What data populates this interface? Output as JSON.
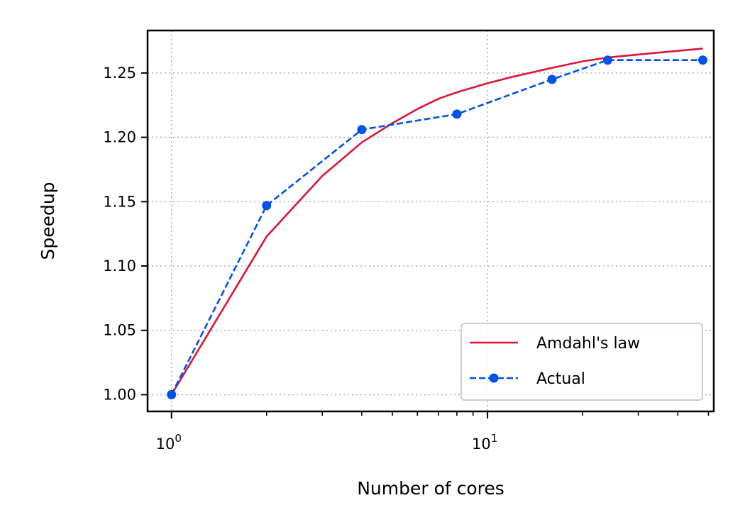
{
  "chart_data": {
    "type": "line",
    "title": "",
    "xlabel": "Number of cores",
    "ylabel": "Speedup",
    "xscale": "log",
    "xlim": [
      0.84,
      52
    ],
    "ylim": [
      0.987,
      1.283
    ],
    "x_major_ticks": [
      {
        "value": 1,
        "base": "10",
        "exp": "0"
      },
      {
        "value": 10,
        "base": "10",
        "exp": "1"
      }
    ],
    "x_minor_ticks": [
      2,
      3,
      4,
      5,
      6,
      7,
      8,
      9,
      20,
      30,
      40,
      50
    ],
    "y_ticks": [
      {
        "value": 1.0,
        "label": "1.00"
      },
      {
        "value": 1.05,
        "label": "1.05"
      },
      {
        "value": 1.1,
        "label": "1.10"
      },
      {
        "value": 1.15,
        "label": "1.15"
      },
      {
        "value": 1.2,
        "label": "1.20"
      },
      {
        "value": 1.25,
        "label": "1.25"
      }
    ],
    "grid": true,
    "legend_position": "lower-right",
    "series": [
      {
        "name": "Amdahl's law",
        "color": "#dc143c",
        "style": "solid",
        "marker": "none",
        "x": [
          1,
          2,
          3,
          4,
          5,
          6,
          7,
          8,
          10,
          12,
          16,
          20,
          24,
          32,
          48
        ],
        "y": [
          1.0,
          1.123,
          1.17,
          1.196,
          1.211,
          1.222,
          1.23,
          1.235,
          1.242,
          1.247,
          1.254,
          1.259,
          1.262,
          1.265,
          1.269
        ]
      },
      {
        "name": "Actual",
        "color": "#0052e8",
        "style": "dashed",
        "marker": "circle",
        "x": [
          1,
          2,
          4,
          8,
          16,
          24,
          48
        ],
        "y": [
          1.0,
          1.147,
          1.206,
          1.218,
          1.245,
          1.26,
          1.26
        ]
      }
    ]
  }
}
